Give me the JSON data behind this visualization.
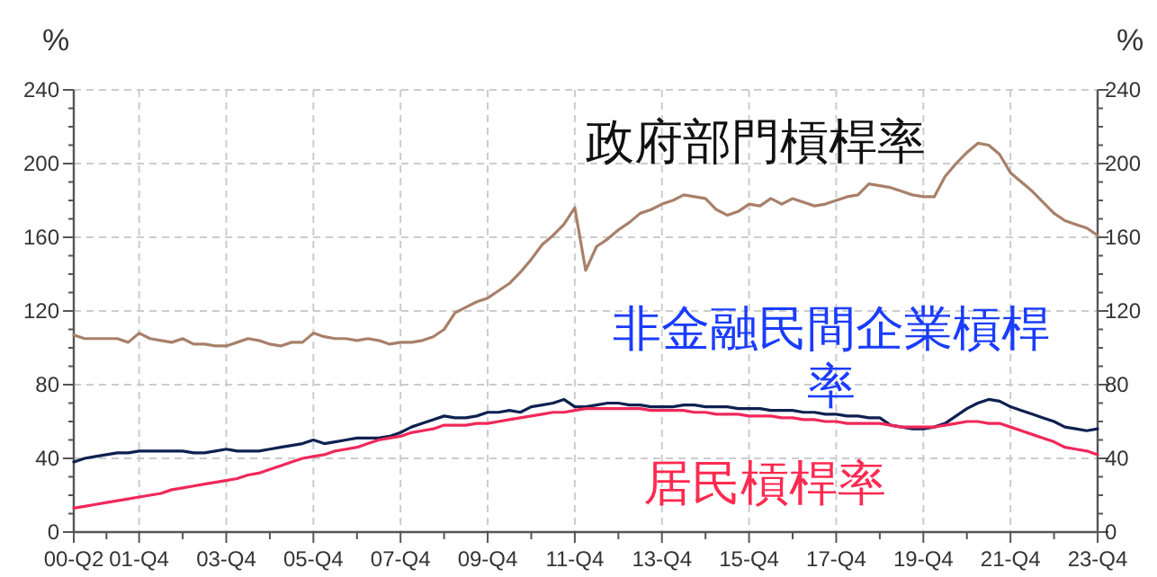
{
  "chart_data": {
    "type": "line",
    "ylabel": "%",
    "y2label": "%",
    "categories": [
      "00-Q2",
      null,
      null,
      null,
      null,
      null,
      "01-Q4",
      null,
      null,
      null,
      null,
      null,
      null,
      null,
      "03-Q4",
      null,
      null,
      null,
      null,
      null,
      null,
      null,
      "05-Q4",
      null,
      null,
      null,
      null,
      null,
      null,
      null,
      "07-Q4",
      null,
      null,
      null,
      null,
      null,
      null,
      null,
      "09-Q4",
      null,
      null,
      null,
      null,
      null,
      null,
      null,
      "11-Q4",
      null,
      null,
      null,
      null,
      null,
      null,
      null,
      "13-Q4",
      null,
      null,
      null,
      null,
      null,
      null,
      null,
      "15-Q4",
      null,
      null,
      null,
      null,
      null,
      null,
      null,
      "17-Q4",
      null,
      null,
      null,
      null,
      null,
      null,
      null,
      "19-Q4",
      null,
      null,
      null,
      null,
      null,
      null,
      null,
      "21-Q4",
      null,
      null,
      null,
      null,
      null,
      null,
      null,
      "23-Q4"
    ],
    "ylim": [
      0,
      240
    ],
    "yticks": [
      0,
      40,
      80,
      120,
      160,
      200,
      240
    ],
    "y2lim": [
      0,
      240
    ],
    "y2ticks": [
      0,
      40,
      80,
      120,
      160,
      200,
      240
    ],
    "grid": true,
    "legend": false,
    "marker": "none",
    "line_style": "solid",
    "series": [
      {
        "name": "政府部門槓桿率",
        "color": "#a8806a",
        "values": [
          107,
          105,
          105,
          105,
          105,
          103,
          108,
          105,
          104,
          103,
          105,
          102,
          102,
          101,
          101,
          103,
          105,
          104,
          102,
          101,
          103,
          103,
          108,
          106,
          105,
          105,
          104,
          105,
          104,
          102,
          103,
          103,
          104,
          106,
          110,
          119,
          122,
          125,
          127,
          131,
          135,
          141,
          148,
          156,
          161,
          167,
          176,
          142,
          155,
          159,
          164,
          168,
          173,
          175,
          178,
          180,
          183,
          182,
          181,
          175,
          172,
          174,
          178,
          177,
          181,
          178,
          181,
          179,
          177,
          178,
          180,
          182,
          183,
          189,
          188,
          187,
          185,
          183,
          182,
          182,
          193,
          200,
          206,
          211,
          210,
          205,
          195,
          190,
          185,
          179,
          173,
          169,
          167,
          165,
          161
        ]
      },
      {
        "name": "非金融民間企業槓桿率",
        "color": "#0d2050",
        "values": [
          38,
          40,
          41,
          42,
          43,
          43,
          44,
          44,
          44,
          44,
          44,
          43,
          43,
          44,
          45,
          44,
          44,
          44,
          45,
          46,
          47,
          48,
          50,
          48,
          49,
          50,
          51,
          51,
          51,
          52,
          54,
          57,
          59,
          61,
          63,
          62,
          62,
          63,
          65,
          65,
          66,
          65,
          68,
          69,
          70,
          72,
          68,
          68,
          69,
          70,
          70,
          69,
          69,
          68,
          68,
          68,
          69,
          69,
          68,
          68,
          68,
          67,
          67,
          67,
          66,
          66,
          66,
          65,
          65,
          64,
          64,
          63,
          63,
          62,
          62,
          58,
          57,
          56,
          56,
          57,
          59,
          63,
          67,
          70,
          72,
          71,
          68,
          66,
          64,
          62,
          60,
          57,
          56,
          55,
          56
        ]
      },
      {
        "name": "居民槓桿率",
        "color": "#f0285a",
        "values": [
          13,
          14,
          15,
          16,
          17,
          18,
          19,
          20,
          21,
          23,
          24,
          25,
          26,
          27,
          28,
          29,
          31,
          32,
          34,
          36,
          38,
          40,
          41,
          42,
          44,
          45,
          46,
          48,
          50,
          51,
          52,
          54,
          55,
          56,
          58,
          58,
          58,
          59,
          59,
          60,
          61,
          62,
          63,
          64,
          65,
          65,
          66,
          67,
          67,
          67,
          67,
          67,
          67,
          66,
          66,
          66,
          66,
          65,
          65,
          64,
          64,
          64,
          63,
          63,
          63,
          62,
          62,
          61,
          61,
          60,
          60,
          59,
          59,
          59,
          59,
          58,
          57,
          57,
          57,
          57,
          58,
          59,
          60,
          60,
          59,
          59,
          57,
          55,
          53,
          51,
          49,
          46,
          45,
          44,
          42
        ]
      }
    ]
  }
}
